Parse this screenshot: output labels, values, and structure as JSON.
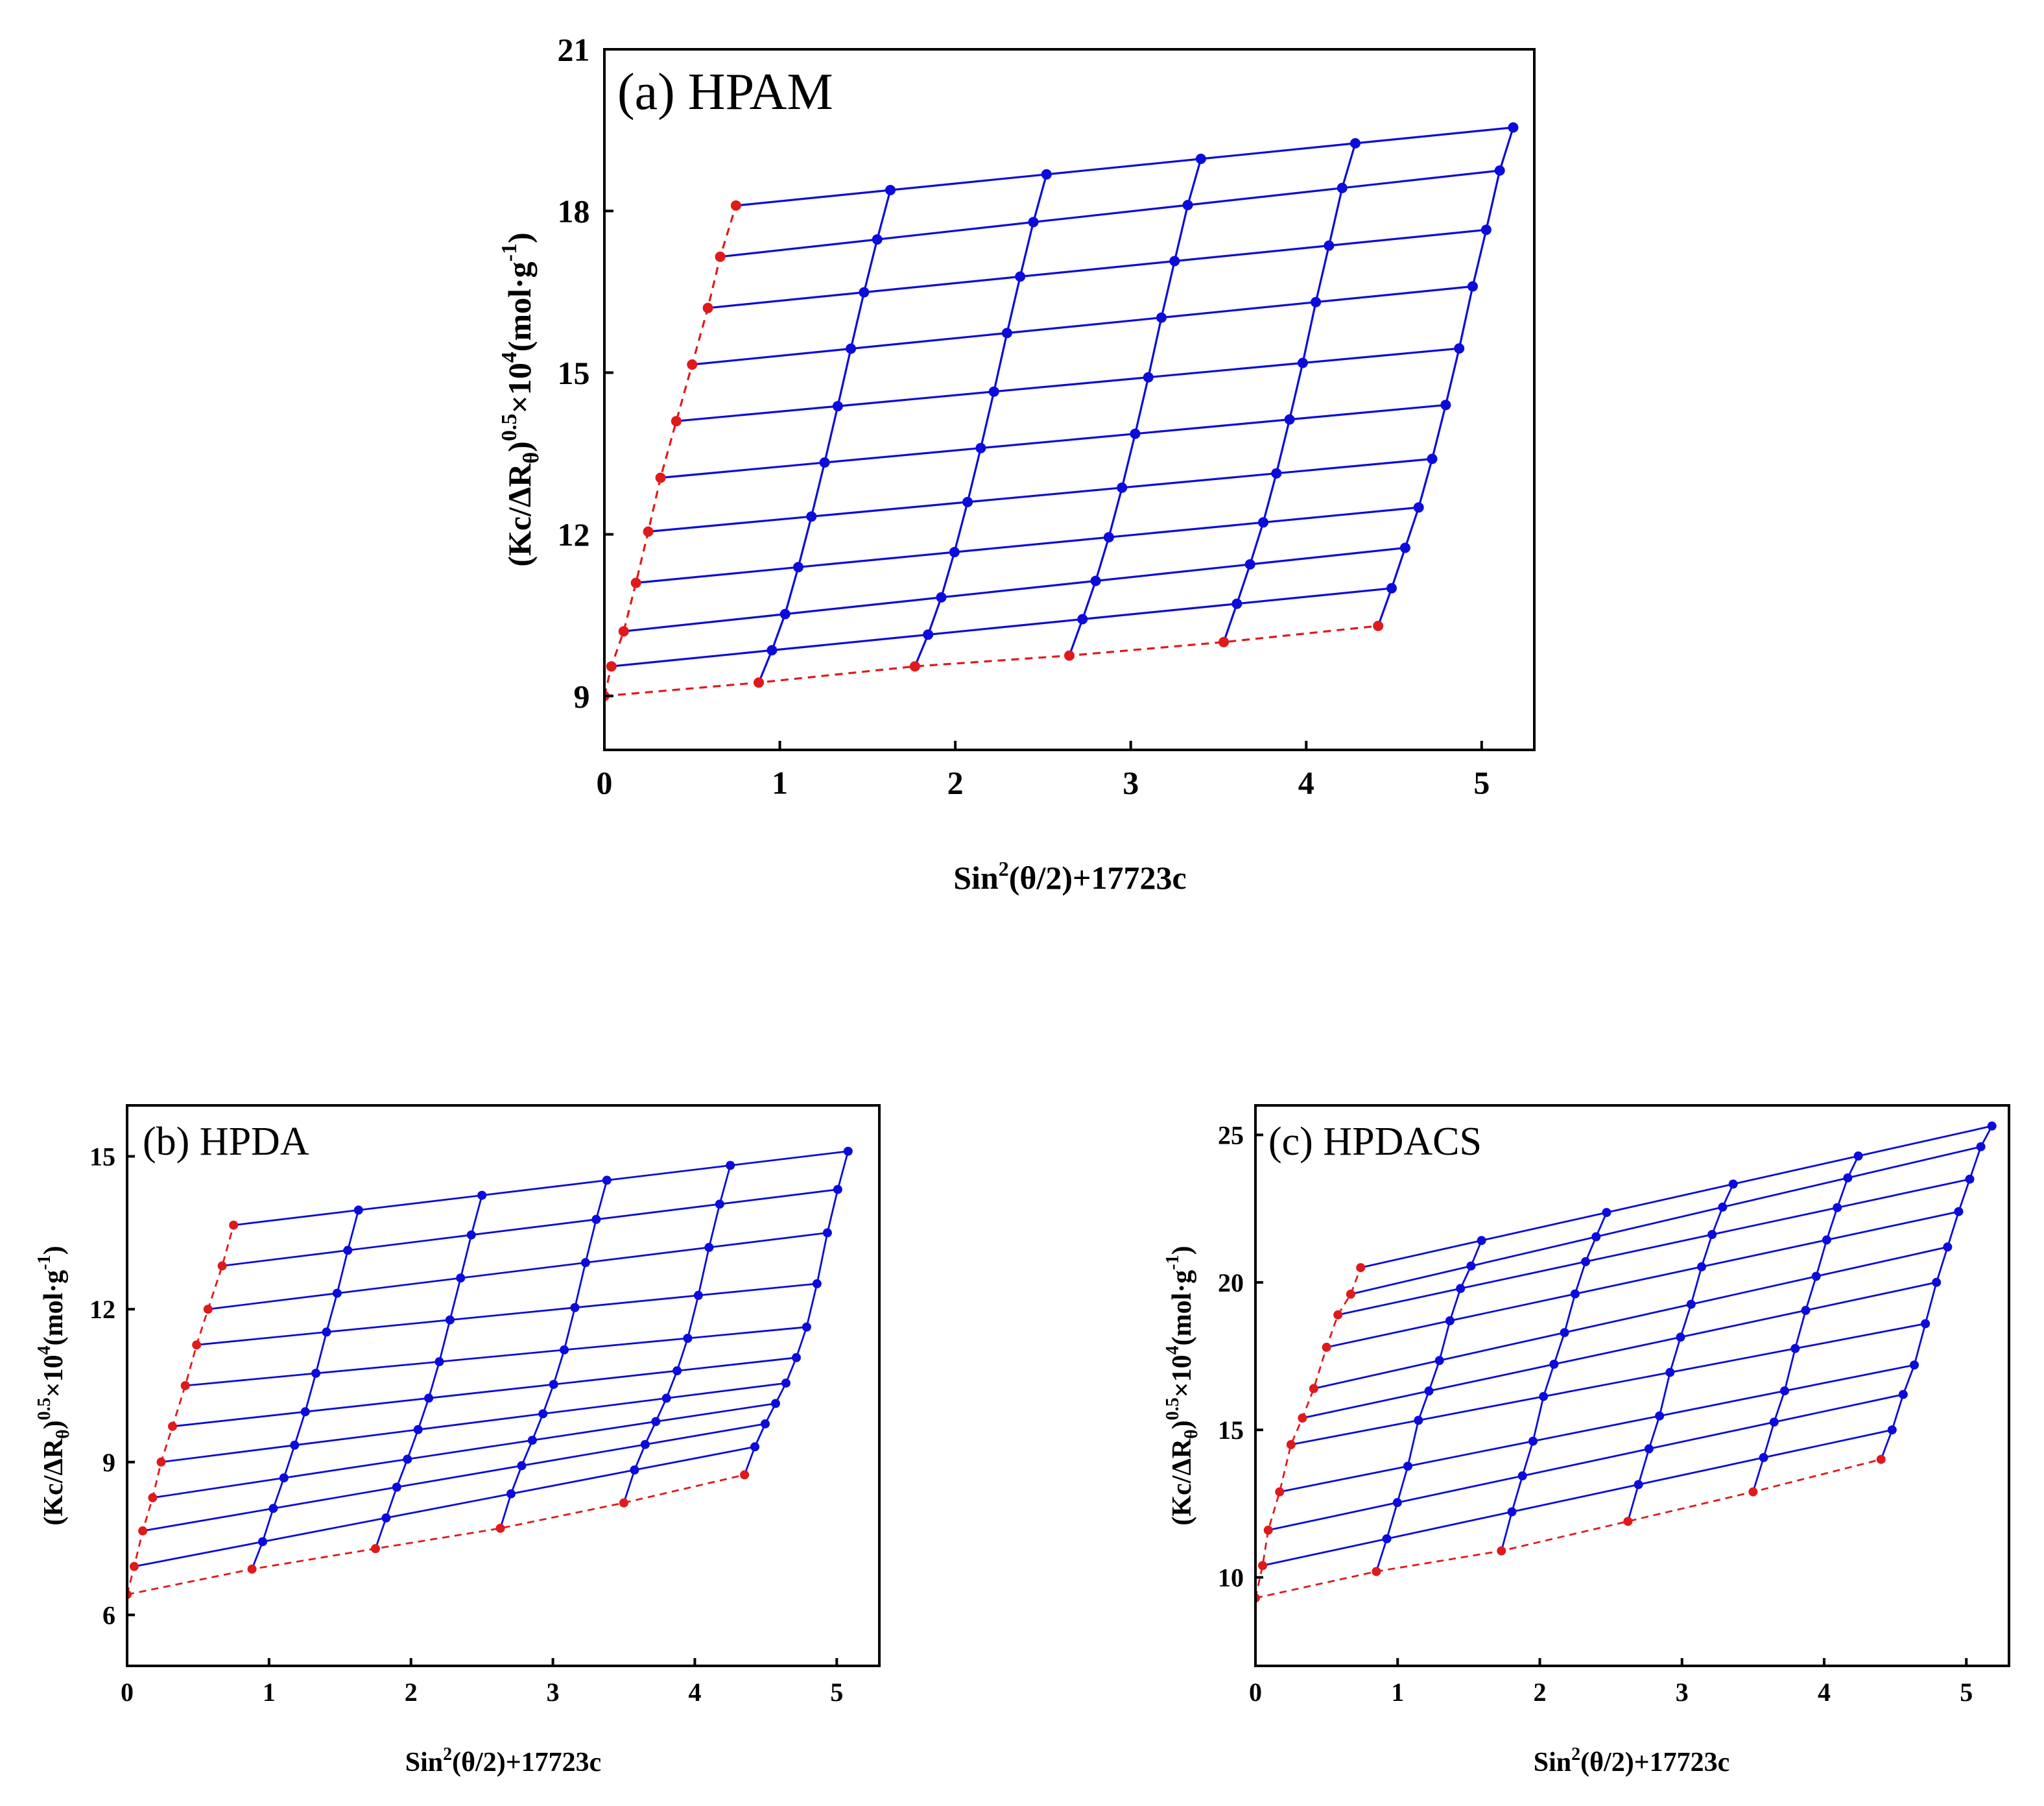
{
  "figure_labels": {
    "x_axis": "Sin²(θ/2)+17723c",
    "x_axis_parts": [
      "Sin",
      "2",
      "(θ/2)+17723c"
    ],
    "y_axis": "(Kc/ΔRθ)^0.5×10^4(mol·g^-1)",
    "y_axis_parts": [
      "(Kc/ΔR",
      "θ",
      ")",
      "0.5",
      "×10",
      "4",
      "(mol·g",
      "-1",
      ")"
    ]
  },
  "colors": {
    "data": "#0b0bdc",
    "extrapolation": "#e0191b",
    "axes": "#000000"
  },
  "chart_data": [
    {
      "id": "a",
      "type": "scatter",
      "title": "(a) HPAM",
      "xlabel": "Sin²(θ/2)+17723c",
      "ylabel": "(Kc/ΔRθ)^0.5×10^4(mol·g^-1)",
      "xlim": [
        0,
        5.3
      ],
      "ylim": [
        8,
        21
      ],
      "xticks": [
        0,
        1,
        2,
        3,
        4,
        5
      ],
      "yticks": [
        9,
        12,
        15,
        18,
        21
      ],
      "series": [
        {
          "name": "grid",
          "x0": [
            0.04,
            0.11,
            0.18,
            0.25,
            0.32,
            0.41,
            0.5,
            0.59,
            0.66,
            0.75
          ],
          "y0": [
            9.55,
            10.2,
            11.1,
            12.05,
            13.05,
            14.1,
            15.15,
            16.2,
            17.15,
            18.1
          ],
          "y_end": [
            11.0,
            11.75,
            12.5,
            13.4,
            14.4,
            15.45,
            16.6,
            17.65,
            18.75,
            19.55
          ],
          "xs": [
            0.88,
            1.77,
            2.65,
            3.53,
            4.41
          ],
          "x_end": 5.18
        }
      ],
      "extrapolation": {
        "theta_zero": {
          "x": [
            0,
            0.04,
            0.11,
            0.18,
            0.25,
            0.32,
            0.41,
            0.5,
            0.59,
            0.66,
            0.75
          ],
          "y": [
            9.0,
            9.55,
            10.2,
            11.1,
            12.05,
            13.05,
            14.1,
            15.15,
            16.2,
            17.15,
            18.1
          ]
        },
        "c_zero": {
          "x": [
            0,
            0.88,
            1.77,
            2.65,
            3.53,
            4.41
          ],
          "y": [
            9.0,
            9.25,
            9.55,
            9.75,
            10.0,
            10.3
          ]
        }
      }
    },
    {
      "id": "b",
      "type": "scatter",
      "title": "(b) HPDA",
      "xlabel": "Sin²(θ/2)+17723c",
      "ylabel": "(Kc/ΔRθ)^0.5×10^4(mol·g^-1)",
      "xlim": [
        0,
        5.3
      ],
      "ylim": [
        5,
        16
      ],
      "xticks": [
        0,
        1,
        2,
        3,
        4,
        5
      ],
      "yticks": [
        6,
        9,
        12,
        15
      ],
      "series": [
        {
          "name": "grid",
          "x0": [
            0.05,
            0.11,
            0.18,
            0.24,
            0.32,
            0.41,
            0.49,
            0.57,
            0.67,
            0.75
          ],
          "y0": [
            6.95,
            7.65,
            8.3,
            9.0,
            9.7,
            10.5,
            11.3,
            12.0,
            12.85,
            13.65
          ],
          "y_end": [
            9.3,
            9.75,
            10.15,
            10.55,
            11.05,
            11.65,
            12.5,
            13.5,
            14.35,
            15.1
          ],
          "xs": [
            0.88,
            1.75,
            2.63,
            3.5,
            4.35
          ],
          "x_end": 5.08
        }
      ],
      "extrapolation": {
        "theta_zero": {
          "x": [
            0,
            0.05,
            0.11,
            0.18,
            0.24,
            0.32,
            0.41,
            0.49,
            0.57,
            0.67,
            0.75
          ],
          "y": [
            6.4,
            6.95,
            7.65,
            8.3,
            9.0,
            9.7,
            10.5,
            11.3,
            12.0,
            12.85,
            13.65
          ]
        },
        "c_zero": {
          "x": [
            0,
            0.88,
            1.75,
            2.63,
            3.5,
            4.35
          ],
          "y": [
            6.4,
            6.9,
            7.3,
            7.7,
            8.2,
            8.75
          ]
        }
      }
    },
    {
      "id": "c",
      "type": "scatter",
      "title": "(c) HPDACS",
      "xlabel": "Sin²(θ/2)+17723c",
      "ylabel": "(Kc/ΔRθ)^0.5×10^4(mol·g^-1)",
      "xlim": [
        0,
        5.3
      ],
      "ylim": [
        7,
        26
      ],
      "xticks": [
        0,
        1,
        2,
        3,
        4,
        5
      ],
      "yticks": [
        10,
        15,
        20,
        25
      ],
      "series": [
        {
          "name": "grid",
          "x0": [
            0.05,
            0.09,
            0.17,
            0.25,
            0.33,
            0.41,
            0.5,
            0.58,
            0.67,
            0.74
          ],
          "y0": [
            10.4,
            11.6,
            12.9,
            14.5,
            15.4,
            16.4,
            17.8,
            18.9,
            19.6,
            20.5
          ],
          "y_end": [
            15.0,
            16.2,
            17.2,
            18.6,
            20.0,
            21.2,
            22.4,
            23.5,
            24.6,
            25.3
          ],
          "xs": [
            0.85,
            1.73,
            2.62,
            3.5,
            4.4
          ],
          "x_end": 5.18
        }
      ],
      "extrapolation": {
        "theta_zero": {
          "x": [
            0,
            0.05,
            0.09,
            0.17,
            0.25,
            0.33,
            0.41,
            0.5,
            0.58,
            0.67,
            0.74
          ],
          "y": [
            9.3,
            10.4,
            11.6,
            12.9,
            14.5,
            15.4,
            16.4,
            17.8,
            18.9,
            19.6,
            20.5
          ]
        },
        "c_zero": {
          "x": [
            0,
            0.85,
            1.73,
            2.62,
            3.5,
            4.4
          ],
          "y": [
            9.3,
            10.2,
            10.9,
            11.9,
            12.9,
            14.0
          ]
        }
      }
    }
  ]
}
